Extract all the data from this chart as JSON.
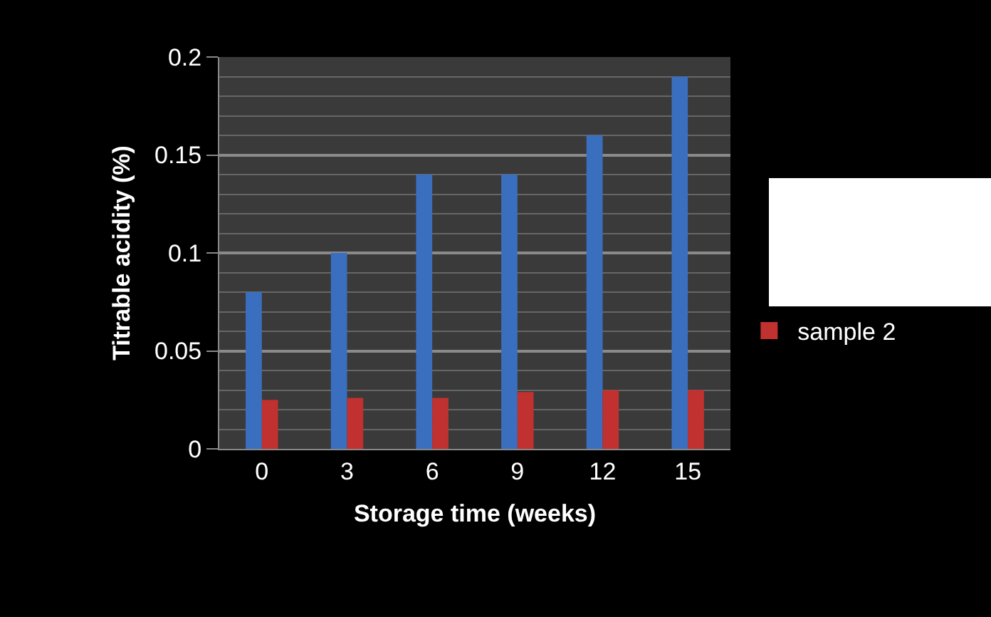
{
  "chart_data": {
    "type": "bar",
    "xlabel": "Storage time (weeks)",
    "ylabel": "Titrable acidity (%)",
    "categories": [
      "0",
      "3",
      "6",
      "9",
      "12",
      "15"
    ],
    "series": [
      {
        "color": "#3a6fc0",
        "values": [
          0.08,
          0.1,
          0.14,
          0.14,
          0.16,
          0.19
        ]
      },
      {
        "name": "sample 2",
        "color": "#c0312f",
        "values": [
          0.025,
          0.026,
          0.026,
          0.029,
          0.03,
          0.03
        ]
      }
    ],
    "ylim": [
      0,
      0.2
    ],
    "yticks": [
      0,
      0.05,
      0.1,
      0.15,
      0.2
    ],
    "grid": "y",
    "legend": "right"
  }
}
